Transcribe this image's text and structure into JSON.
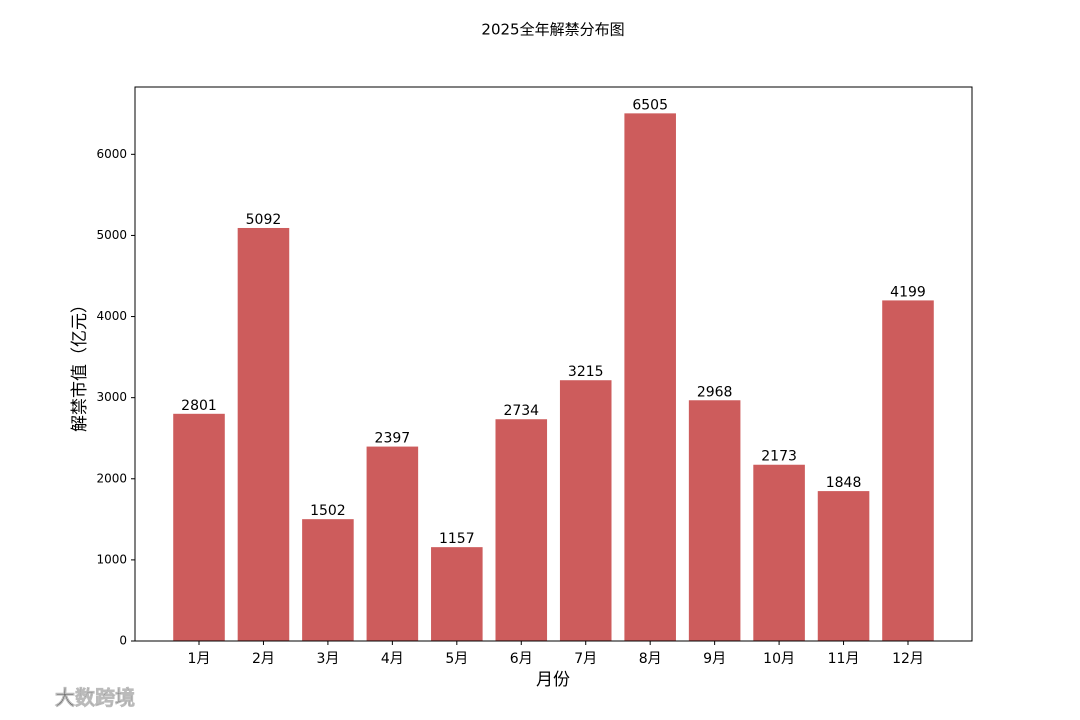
{
  "chart_data": {
    "type": "bar",
    "title": "2025全年解禁分布图",
    "x_label": "月份",
    "y_label": "解禁市值（亿元）",
    "categories": [
      "1月",
      "2月",
      "3月",
      "4月",
      "5月",
      "6月",
      "7月",
      "8月",
      "9月",
      "10月",
      "11月",
      "12月"
    ],
    "values": [
      2801,
      5092,
      1502,
      2397,
      1157,
      2734,
      3215,
      6505,
      2968,
      2173,
      1848,
      4199
    ],
    "color": "#cd5c5c",
    "ylim": [
      0,
      6830
    ],
    "yticks": [
      0,
      1000,
      2000,
      3000,
      4000,
      5000,
      6000
    ],
    "grid": false
  },
  "watermark": "大数跨境"
}
